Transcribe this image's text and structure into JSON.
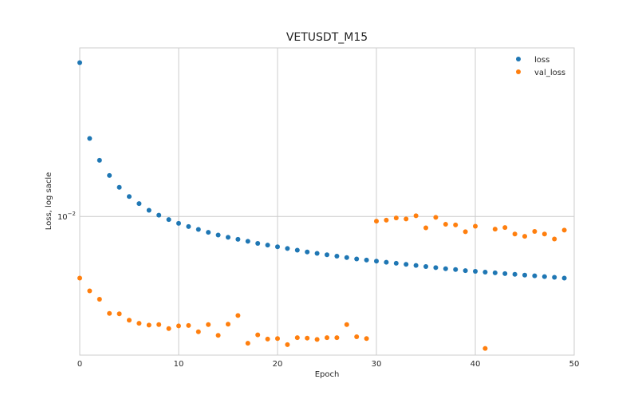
{
  "chart_data": {
    "type": "scatter",
    "title": "VETUSDT_M15",
    "xlabel": "Epoch",
    "ylabel": "Loss, log sacle",
    "xlim": [
      0,
      50
    ],
    "ylim": [
      0.0064,
      0.0172
    ],
    "yscale": "log",
    "xticks": [
      0,
      10,
      20,
      30,
      40,
      50
    ],
    "yticks": [
      {
        "value": 0.01,
        "label": "10",
        "exponent": "−2"
      }
    ],
    "grid": true,
    "legend_position": "top-right",
    "colors": {
      "loss": "#1f77b4",
      "val_loss": "#ff7f0e"
    },
    "series": [
      {
        "name": "loss",
        "x": [
          0,
          1,
          2,
          3,
          4,
          5,
          6,
          7,
          8,
          9,
          10,
          11,
          12,
          13,
          14,
          15,
          16,
          17,
          18,
          19,
          20,
          21,
          22,
          23,
          24,
          25,
          26,
          27,
          28,
          29,
          30,
          31,
          32,
          33,
          34,
          35,
          36,
          37,
          38,
          39,
          40,
          41,
          42,
          43,
          44,
          45,
          46,
          47,
          48,
          49
        ],
        "y": [
          0.0164,
          0.01285,
          0.01198,
          0.01141,
          0.01098,
          0.01066,
          0.01042,
          0.0102,
          0.01004,
          0.0099,
          0.00978,
          0.00968,
          0.00959,
          0.0095,
          0.00942,
          0.00935,
          0.00929,
          0.00923,
          0.00917,
          0.00912,
          0.00907,
          0.00902,
          0.00897,
          0.00892,
          0.00888,
          0.00884,
          0.0088,
          0.00876,
          0.00872,
          0.00869,
          0.00866,
          0.00863,
          0.0086,
          0.00857,
          0.00854,
          0.00851,
          0.00848,
          0.00845,
          0.00843,
          0.0084,
          0.00838,
          0.00836,
          0.00834,
          0.00832,
          0.0083,
          0.00828,
          0.00826,
          0.00824,
          0.00822,
          0.0082
        ]
      },
      {
        "name": "val_loss",
        "x": [
          0,
          1,
          2,
          3,
          4,
          5,
          6,
          7,
          8,
          9,
          10,
          11,
          12,
          13,
          14,
          15,
          16,
          17,
          18,
          19,
          20,
          21,
          22,
          23,
          24,
          25,
          26,
          27,
          28,
          29,
          30,
          31,
          32,
          33,
          34,
          35,
          36,
          37,
          38,
          39,
          40,
          41,
          42,
          43,
          44,
          45,
          46,
          47,
          48,
          49
        ],
        "y": [
          0.0082,
          0.00787,
          0.00766,
          0.00732,
          0.00731,
          0.00716,
          0.00709,
          0.00705,
          0.00706,
          0.00697,
          0.00703,
          0.00704,
          0.0069,
          0.00706,
          0.00682,
          0.00707,
          0.00727,
          0.00665,
          0.00683,
          0.00674,
          0.00675,
          0.00662,
          0.00677,
          0.00676,
          0.00673,
          0.00677,
          0.00677,
          0.00706,
          0.00679,
          0.00675,
          0.00985,
          0.00988,
          0.00995,
          0.00992,
          0.01002,
          0.00964,
          0.00997,
          0.00975,
          0.00973,
          0.00952,
          0.00969,
          0.00654,
          0.0096,
          0.00965,
          0.00945,
          0.00938,
          0.00953,
          0.00945,
          0.0093,
          0.00957
        ]
      }
    ]
  }
}
